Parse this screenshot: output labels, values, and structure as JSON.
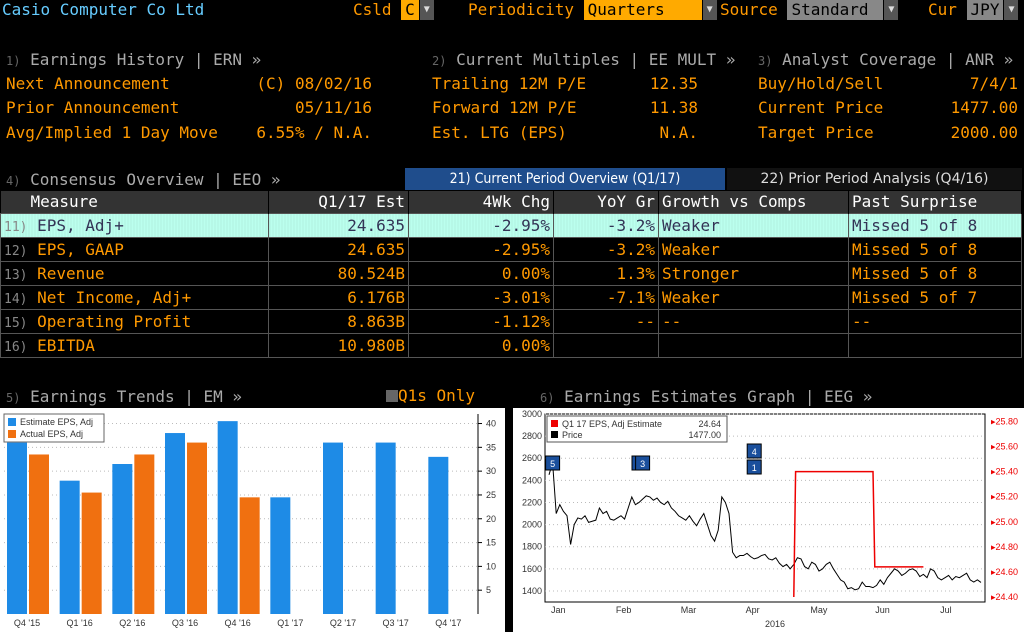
{
  "header": {
    "company": "Casio Computer Co Ltd",
    "csld_label": "Csld",
    "csld_value": "C",
    "periodicity_label": "Periodicity",
    "periodicity_value": "Quarters",
    "source_label": "Source",
    "source_value": "Standard",
    "cur_label": "Cur",
    "cur_value": "JPY"
  },
  "ern": {
    "num": "1)",
    "title": "Earnings History | ERN »",
    "rows": [
      {
        "label": "Next Announcement",
        "value": "(C)  08/02/16"
      },
      {
        "label": "Prior Announcement",
        "value": "05/11/16"
      },
      {
        "label": "Avg/Implied 1 Day Move",
        "value": "6.55% / N.A."
      }
    ]
  },
  "eemult": {
    "num": "2)",
    "title": "Current Multiples | EE MULT »",
    "rows": [
      {
        "label": "Trailing 12M P/E",
        "value": "12.35"
      },
      {
        "label": "Forward 12M P/E",
        "value": "11.38"
      },
      {
        "label": "Est. LTG (EPS)",
        "value": "N.A."
      }
    ]
  },
  "anr": {
    "num": "3)",
    "title": "Analyst Coverage | ANR »",
    "rows": [
      {
        "label": "Buy/Hold/Sell",
        "value": "7/4/1"
      },
      {
        "label": "Current Price",
        "value": "1477.00"
      },
      {
        "label": "Target Price",
        "value": "2000.00"
      }
    ]
  },
  "eeo": {
    "num": "4)",
    "title": "Consensus Overview | EEO »",
    "tab_current": "21) Current Period Overview (Q1/17)",
    "tab_prior": "22) Prior Period Analysis (Q4/16)",
    "headers": [
      "Measure",
      "Q1/17 Est",
      "4Wk Chg",
      "YoY Gr",
      "Growth vs Comps",
      "Past Surprise"
    ],
    "rows": [
      {
        "num": "11)",
        "measure": "EPS, Adj+",
        "est": "24.635",
        "chg": "-2.95%",
        "yoy": "-3.2%",
        "comps": "Weaker",
        "surprise": "Missed 5 of 8"
      },
      {
        "num": "12)",
        "measure": "EPS, GAAP",
        "est": "24.635",
        "chg": "-2.95%",
        "yoy": "-3.2%",
        "comps": "Weaker",
        "surprise": "Missed 5 of 8"
      },
      {
        "num": "13)",
        "measure": "Revenue",
        "est": "80.524B",
        "chg": "0.00%",
        "yoy": "1.3%",
        "comps": "Stronger",
        "surprise": "Missed 5 of 8"
      },
      {
        "num": "14)",
        "measure": "Net Income, Adj+",
        "est": "6.176B",
        "chg": "-3.01%",
        "yoy": "-7.1%",
        "comps": "Weaker",
        "surprise": "Missed 5 of 7"
      },
      {
        "num": "15)",
        "measure": "Operating Profit",
        "est": "8.863B",
        "chg": "-1.12%",
        "yoy": "--",
        "comps": "--",
        "surprise": "--"
      },
      {
        "num": "16)",
        "measure": "EBITDA",
        "est": "10.980B",
        "chg": "0.00%",
        "yoy": "",
        "comps": "",
        "surprise": ""
      }
    ]
  },
  "em": {
    "num": "5)",
    "title": "Earnings Trends | EM »",
    "q1s_label": "Q1s Only",
    "chart_data": {
      "type": "bar",
      "categories": [
        "Q4 '15",
        "Q1 '16",
        "Q2 '16",
        "Q3 '16",
        "Q4 '16",
        "Q1 '17",
        "Q2 '17",
        "Q3 '17",
        "Q4 '17"
      ],
      "series": [
        {
          "name": "Estimate EPS, Adj",
          "color": "#1e8be6",
          "values": [
            36,
            28,
            31.5,
            38,
            40.5,
            24.5,
            36,
            36,
            33
          ]
        },
        {
          "name": "Actual EPS, Adj",
          "color": "#f07010",
          "values": [
            33.5,
            25.5,
            33.5,
            36,
            24.5,
            null,
            null,
            null,
            null
          ]
        }
      ],
      "ylim": [
        0,
        42
      ],
      "yticks": [
        5,
        10,
        15,
        20,
        25,
        30,
        35,
        40
      ]
    }
  },
  "eeg": {
    "num": "6)",
    "title": "Earnings Estimates Graph | EEG »",
    "legend": [
      {
        "label": "Q1 17 EPS, Adj Estimate",
        "value": "24.64",
        "color": "#e00"
      },
      {
        "label": "Price",
        "value": "1477.00",
        "color": "#000"
      }
    ],
    "chart_data": {
      "type": "line",
      "year_label": "2016",
      "months": [
        "Jan",
        "Feb",
        "Mar",
        "Apr",
        "May",
        "Jun",
        "Jul"
      ],
      "left_axis": {
        "ylim": [
          1300,
          3000
        ],
        "ticks": [
          1400,
          1600,
          1800,
          2000,
          2200,
          2400,
          2600,
          2800,
          3000
        ]
      },
      "right_axis": {
        "ylim": [
          24.36,
          25.86
        ],
        "ticks": [
          "24.40",
          "24.60",
          "24.80",
          "25.00",
          "25.20",
          "25.40",
          "25.60",
          "25.80"
        ]
      },
      "series": [
        {
          "name": "Price",
          "color": "#000",
          "x": [
            0,
            1,
            2,
            3,
            4,
            5,
            6,
            7,
            8,
            9,
            10,
            11,
            12,
            13,
            14,
            15,
            16,
            17,
            18,
            19,
            20,
            21,
            22,
            23,
            24,
            25,
            26,
            27,
            28,
            29,
            30,
            31,
            32,
            33,
            34,
            35,
            36,
            37,
            38,
            39,
            40,
            41,
            42,
            43,
            44,
            45,
            46,
            47,
            48,
            49,
            50,
            51,
            52,
            53,
            54,
            55,
            56,
            57,
            58,
            59,
            60,
            61,
            62,
            63,
            64,
            65,
            66,
            67,
            68,
            69,
            70,
            71,
            72,
            73,
            74,
            75,
            76,
            77,
            78,
            79,
            80,
            81,
            82,
            83,
            84,
            85,
            86,
            87,
            88,
            89,
            90,
            91,
            92,
            93,
            94,
            95,
            96,
            97,
            98,
            99,
            100,
            101,
            102,
            103,
            104,
            105,
            106,
            107,
            108,
            109,
            110,
            111,
            112,
            113,
            114,
            115,
            116,
            117,
            118,
            119,
            120
          ],
          "y": [
            2450,
            2560,
            2100,
            2180,
            2120,
            2080,
            1820,
            2000,
            2060,
            2050,
            2080,
            2020,
            2030,
            2040,
            2150,
            2100,
            2120,
            2050,
            2040,
            2060,
            2080,
            2050,
            2150,
            2250,
            2180,
            2200,
            2230,
            2260,
            2250,
            2220,
            2240,
            2200,
            2180,
            2210,
            2150,
            2120,
            2080,
            2060,
            2040,
            2080,
            2030,
            1990,
            2050,
            2100,
            2000,
            1900,
            1850,
            1950,
            2250,
            2200,
            2100,
            1750,
            1700,
            1720,
            1720,
            1740,
            1710,
            1690,
            1700,
            1720,
            1730,
            1690,
            1680,
            1700,
            1650,
            1620,
            1640,
            1600,
            1640,
            1700,
            1690,
            1620,
            1600,
            1660,
            1640,
            1580,
            1600,
            1640,
            1660,
            1600,
            1550,
            1500,
            1480,
            1420,
            1430,
            1410,
            1420,
            1480,
            1440,
            1440,
            1430,
            1450,
            1500,
            1460,
            1520,
            1560,
            1600,
            1580,
            1540,
            1560,
            1590,
            1600,
            1580,
            1530,
            1550,
            1520,
            1600,
            1580,
            1520,
            1500,
            1520,
            1540,
            1500,
            1530,
            1520,
            1540,
            1560,
            1500,
            1480,
            1500,
            1477
          ]
        },
        {
          "name": "Q1 17 EPS, Adj Estimate",
          "color": "#e00",
          "points": [
            [
              68,
              24.4
            ],
            [
              68.5,
              25.4
            ],
            [
              90,
              25.4
            ],
            [
              90.5,
              24.64
            ],
            [
              104,
              24.64
            ]
          ]
        }
      ],
      "markers": [
        {
          "label": "5",
          "x": 1
        },
        {
          "label": "3",
          "x": 25
        },
        {
          "label": "3",
          "x": 26
        },
        {
          "label": "4",
          "x": 57
        },
        {
          "label": "1",
          "x": 57
        }
      ]
    }
  }
}
